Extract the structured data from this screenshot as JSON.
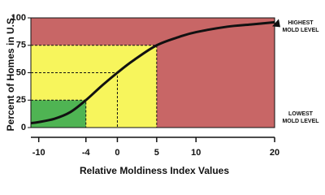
{
  "chart_data": {
    "type": "line",
    "ylabel": "Percent of Homes in U.S.",
    "xlabel": "Relative Moldiness Index Values",
    "x": [
      -11,
      -10,
      -8,
      -6,
      -4,
      -2,
      0,
      2,
      5,
      8,
      10,
      14,
      17,
      20
    ],
    "series": [
      {
        "color": "#111111",
        "values": [
          4,
          5,
          8,
          14,
          25,
          38,
          50,
          61,
          75,
          83,
          87,
          92,
          94,
          96
        ]
      }
    ],
    "xlim": [
      -11,
      20
    ],
    "xticks": [
      -10,
      -4,
      0,
      5,
      10,
      20
    ],
    "ylim": [
      0,
      100
    ],
    "yticks": [
      0,
      25,
      50,
      75,
      100
    ],
    "background": "#c86666",
    "zones": [
      {
        "x": 5,
        "y": 75,
        "color": "#f7f55c"
      },
      {
        "x": -4,
        "y": 25,
        "color": "#4fb453"
      }
    ],
    "guides": [
      {
        "x": -4,
        "y": 25
      },
      {
        "x": 0,
        "y": 50
      },
      {
        "x": 5,
        "y": 75
      }
    ],
    "annotations": [
      {
        "lines": [
          "HIGHEST",
          "MOLD LEVEL"
        ]
      },
      {
        "lines": [
          "LOWEST",
          "MOLD LEVEL"
        ]
      }
    ]
  }
}
